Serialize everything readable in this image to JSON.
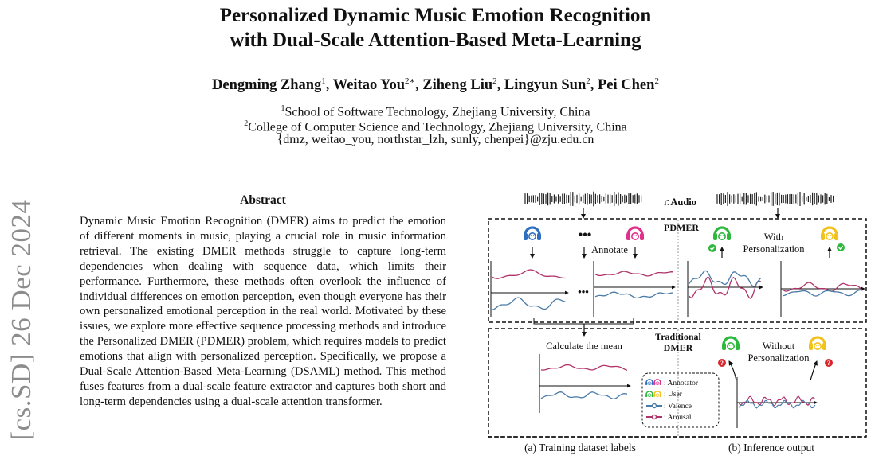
{
  "paper": {
    "title_line1": "Personalized Dynamic Music Emotion Recognition",
    "title_line2": "with Dual-Scale Attention-Based Meta-Learning",
    "authors": [
      {
        "name": "Dengming Zhang",
        "sup": "1"
      },
      {
        "name": "Weitao You",
        "sup": "2∗"
      },
      {
        "name": "Ziheng Liu",
        "sup": "2"
      },
      {
        "name": "Lingyun Sun",
        "sup": "2"
      },
      {
        "name": "Pei Chen",
        "sup": "2"
      }
    ],
    "affiliation1_sup": "1",
    "affiliation1": "School of Software Technology, Zhejiang University, China",
    "affiliation2_sup": "2",
    "affiliation2": "College of Computer Science and Technology, Zhejiang University, China",
    "emails": "{dmz, weitao_you, northstar_lzh, sunly, chenpei}@zju.edu.cn",
    "arxiv_stamp": "[cs.SD]  26 Dec 2024",
    "abstract_heading": "Abstract",
    "abstract_text": "Dynamic Music Emotion Recognition (DMER) aims to predict the emotion of different moments in music, playing a crucial role in music information retrieval. The existing DMER methods struggle to capture long-term dependencies when dealing with sequence data, which limits their performance. Furthermore, these methods often overlook the influence of individual differences on emotion perception, even though everyone has their own personalized emotional perception in the real world. Motivated by these issues, we explore more effective sequence processing methods and introduce the Personalized DMER (PDMER) problem, which requires models to predict emotions that align with personalized perception. Specifically, we propose a Dual-Scale Attention-Based Meta-Learning (DSAML) method. This method fuses features from a dual-scale feature extractor and captures both short and long-term dependencies using a dual-scale attention transformer."
  },
  "figure": {
    "audio_label": "♫Audio",
    "pdmer_label": "PDMER",
    "annotate_label": "Annotate",
    "with_line1": "With",
    "with_line2": "Personalization",
    "traditional_line1": "Traditional",
    "traditional_line2": "DMER",
    "calculate_mean": "Calculate the mean",
    "without_line1": "Without",
    "without_line2": "Personalization",
    "legend": {
      "annotator": ": Annotator",
      "user": ": User",
      "valence": ": Valence",
      "arousal": ": Arousal"
    },
    "caption_a": "(a) Training dataset labels",
    "caption_b": "(b) Inference output",
    "colors": {
      "valence": "#4a7ba8",
      "arousal": "#b0336a",
      "annotator_blue": "#2f6fc0",
      "annotator_pink": "#e0308a",
      "user_green": "#2eb83d",
      "user_yellow": "#f2c21b",
      "check": "#2eb83d",
      "question": "#d9262a"
    }
  }
}
